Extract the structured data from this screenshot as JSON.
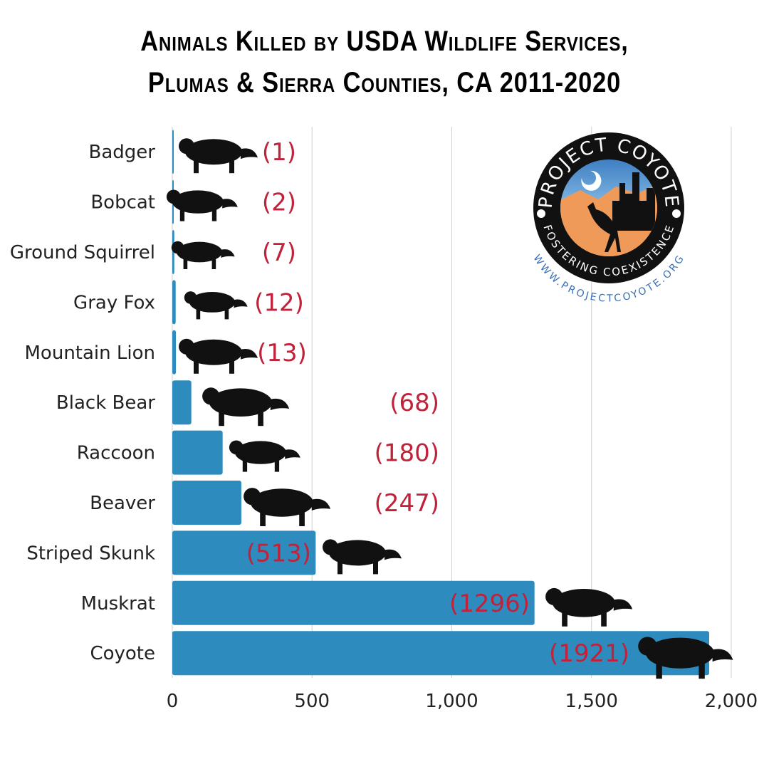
{
  "title_line1": "Animals Killed by USDA Wildlife Services,",
  "title_line2": "Plumas & Sierra Counties, CA 2011-2020",
  "logo": {
    "top_text": "PROJECT COYOTE",
    "bottom_text": "FOSTERING COEXISTENCE",
    "url_text": "WWW.PROJECTCOYOTE.ORG"
  },
  "colors": {
    "bar": "#2e8bbd",
    "label": "#c0223a",
    "grid": "#d0d0d0",
    "logo_url": "#3a6fb5"
  },
  "chart_data": {
    "type": "bar",
    "orientation": "horizontal",
    "title": "Animals Killed by USDA Wildlife Services, Plumas & Sierra Counties, CA 2011-2020",
    "categories": [
      "Badger",
      "Bobcat",
      "Ground Squirrel",
      "Gray Fox",
      "Mountain Lion",
      "Black Bear",
      "Raccoon",
      "Beaver",
      "Striped Skunk",
      "Muskrat",
      "Coyote"
    ],
    "values": [
      1,
      2,
      7,
      12,
      13,
      68,
      180,
      247,
      513,
      1296,
      1921
    ],
    "data_labels": [
      "(1)",
      "(2)",
      "(7)",
      "(12)",
      "(13)",
      "(68)",
      "(180)",
      "(247)",
      "(513)",
      "(1296)",
      "(1921)"
    ],
    "xlim": [
      0,
      2000
    ],
    "xticks": [
      0,
      500,
      1000,
      1500,
      2000
    ],
    "xtick_labels": [
      "0",
      "500",
      "1,000",
      "1,500",
      "2,000"
    ],
    "xlabel": "",
    "ylabel": "",
    "grid": "vertical"
  }
}
